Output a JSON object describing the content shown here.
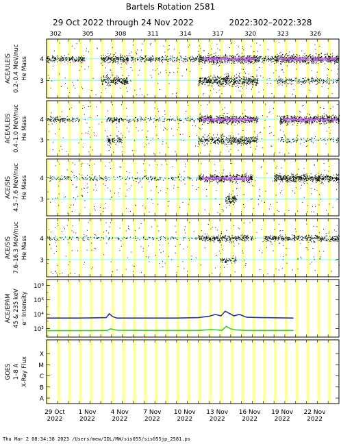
{
  "title": "Bartels Rotation 2581",
  "subtitle_dates": "29 Oct 2022 through 24 Nov 2022",
  "subtitle_doy": "2022:302–2022:328",
  "footer": "Thu Mar  2 08:34:38 2023   /Users/mew/IDL/MW/sis055/sis055jp_2581.ps",
  "colors": {
    "band_yellow": "#ffff99",
    "grid_cyan": "#88ffff",
    "dot_black": "#000000",
    "dense_magenta": "#cc66ff",
    "epam_low": "#1f2fb0",
    "epam_high": "#33cc33"
  },
  "top_axis": {
    "label_doys": [
      "302",
      "305",
      "308",
      "311",
      "314",
      "317",
      "320",
      "323",
      "326"
    ]
  },
  "bottom_axis": {
    "labels": [
      {
        "line1": "29 Oct",
        "line2": "2022"
      },
      {
        "line1": "1 Nov",
        "line2": "2022"
      },
      {
        "line1": "4 Nov",
        "line2": "2022"
      },
      {
        "line1": "7 Nov",
        "line2": "2022"
      },
      {
        "line1": "10 Nov",
        "line2": "2022"
      },
      {
        "line1": "13 Nov",
        "line2": "2022"
      },
      {
        "line1": "16 Nov",
        "line2": "2022"
      },
      {
        "line1": "19 Nov",
        "line2": "2022"
      },
      {
        "line1": "22 Nov",
        "line2": "2022"
      }
    ]
  },
  "chart_data": [
    {
      "type": "scatter",
      "ylabel_instrument": "ACE/ULEIS",
      "ylabel_energy": "0.2–0.4 MeV/nuc",
      "ylabel_quantity": "He Mass",
      "ytick_labels": [
        "4",
        "3"
      ],
      "ylim": [
        2.2,
        4.9
      ],
      "xlim": [
        302,
        329
      ],
      "clusters": [
        {
          "x_start": 302,
          "x_end": 305.5,
          "mass": 4,
          "level": 0.55
        },
        {
          "x_start": 307,
          "x_end": 309.5,
          "mass": 4,
          "level": 0.8
        },
        {
          "x_start": 307,
          "x_end": 309.5,
          "mass": 3,
          "level": 0.8
        },
        {
          "x_start": 309.5,
          "x_end": 316,
          "mass": 4,
          "level": 0.35
        },
        {
          "x_start": 316,
          "x_end": 321.5,
          "mass": 4,
          "level": 1.0
        },
        {
          "x_start": 316,
          "x_end": 321.5,
          "mass": 3,
          "level": 0.9
        },
        {
          "x_start": 321.5,
          "x_end": 323,
          "mass": 4,
          "level": 0.45
        },
        {
          "x_start": 323,
          "x_end": 329,
          "mass": 4,
          "level": 1.0
        },
        {
          "x_start": 323,
          "x_end": 329,
          "mass": 3,
          "level": 0.3
        }
      ]
    },
    {
      "type": "scatter",
      "ylabel_instrument": "ACE/ULEIS",
      "ylabel_energy": "0.4–1.0 MeV/nuc",
      "ylabel_quantity": "He Mass",
      "ytick_labels": [
        "4",
        "3"
      ],
      "ylim": [
        2.2,
        4.9
      ],
      "xlim": [
        302,
        329
      ],
      "clusters": [
        {
          "x_start": 302,
          "x_end": 305,
          "mass": 4,
          "level": 0.35
        },
        {
          "x_start": 307.5,
          "x_end": 309,
          "mass": 4,
          "level": 0.5
        },
        {
          "x_start": 307.5,
          "x_end": 309,
          "mass": 3,
          "level": 0.6
        },
        {
          "x_start": 309,
          "x_end": 316,
          "mass": 4,
          "level": 0.15
        },
        {
          "x_start": 316,
          "x_end": 321.5,
          "mass": 4,
          "level": 0.95
        },
        {
          "x_start": 316,
          "x_end": 321.5,
          "mass": 3,
          "level": 0.7
        },
        {
          "x_start": 323.5,
          "x_end": 329,
          "mass": 4,
          "level": 1.0
        },
        {
          "x_start": 323.5,
          "x_end": 329,
          "mass": 3,
          "level": 0.15
        }
      ]
    },
    {
      "type": "scatter",
      "ylabel_instrument": "ACE/SIS",
      "ylabel_energy": "4.5–7.6 MeV/nuc",
      "ylabel_quantity": "He Mass",
      "ytick_labels": [
        "4",
        "3"
      ],
      "ylim": [
        2.2,
        4.9
      ],
      "xlim": [
        302,
        329
      ],
      "clusters": [
        {
          "x_start": 302,
          "x_end": 316,
          "mass": 4,
          "level": 0.15
        },
        {
          "x_start": 316,
          "x_end": 321,
          "mass": 4,
          "level": 0.9
        },
        {
          "x_start": 318.5,
          "x_end": 319.5,
          "mass": 3,
          "level": 0.9
        },
        {
          "x_start": 323,
          "x_end": 329,
          "mass": 4,
          "level": 0.85
        }
      ]
    },
    {
      "type": "scatter",
      "ylabel_instrument": "ACE/SIS",
      "ylabel_energy": "7.6–16.3 MeV/nuc",
      "ylabel_quantity": "He Mass",
      "ytick_labels": [
        "4",
        "3"
      ],
      "ylim": [
        2.2,
        4.9
      ],
      "xlim": [
        302,
        329
      ],
      "clusters": [
        {
          "x_start": 302,
          "x_end": 316,
          "mass": 4,
          "level": 0.1
        },
        {
          "x_start": 316,
          "x_end": 321,
          "mass": 4,
          "level": 0.6
        },
        {
          "x_start": 318,
          "x_end": 319.5,
          "mass": 3,
          "level": 0.4
        },
        {
          "x_start": 322,
          "x_end": 329,
          "mass": 4,
          "level": 0.5
        }
      ]
    },
    {
      "type": "line",
      "ylabel_instrument": "ACE/EPAM",
      "ylabel_quantity": "e⁻ Intensity",
      "ylabel_energy": "45 & 235 keV",
      "ytick_labels": [
        "10⁸",
        "10⁶",
        "10⁴",
        "10²"
      ],
      "ylog": true,
      "ylim_log10": [
        0.8,
        8.8
      ],
      "xlim": [
        302,
        329
      ],
      "series": [
        {
          "color_key": "epam_low",
          "x": [
            302.0,
            305.0,
            307.5,
            307.8,
            308.1,
            308.5,
            310,
            312,
            314,
            316,
            317.0,
            317.6,
            318.1,
            318.5,
            319.0,
            319.3,
            319.8,
            320.5,
            322,
            324.8
          ],
          "log10_y": [
            3.45,
            3.45,
            3.5,
            4.05,
            3.65,
            3.45,
            3.45,
            3.45,
            3.45,
            3.5,
            3.7,
            3.95,
            3.75,
            4.4,
            4.0,
            3.75,
            3.95,
            3.55,
            3.5,
            3.45
          ]
        },
        {
          "color_key": "epam_high",
          "x": [
            302.0,
            305.0,
            307.6,
            307.9,
            308.5,
            312,
            316,
            317.2,
            318.2,
            318.6,
            319.0,
            319.5,
            320.5,
            322,
            324.8
          ],
          "log10_y": [
            1.7,
            1.7,
            1.72,
            1.95,
            1.75,
            1.72,
            1.72,
            1.85,
            1.75,
            2.3,
            1.95,
            1.8,
            1.72,
            1.72,
            1.72
          ]
        }
      ]
    },
    {
      "type": "line",
      "ylabel_instrument": "GOES",
      "ylabel_quantity": "X-Ray Flux",
      "ylabel_energy": "1–8 A",
      "ytick_labels": [
        "X",
        "M",
        "C",
        "B",
        "A"
      ],
      "xlim": [
        302,
        329
      ],
      "series": []
    }
  ]
}
